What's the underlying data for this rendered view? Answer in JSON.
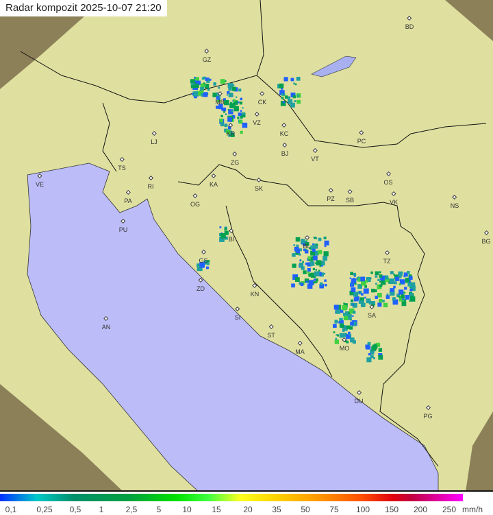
{
  "title": "Radar kompozit  2025-10-07   21:20",
  "legend": {
    "unit": "mm/h",
    "labels": [
      "0,1",
      "0,25",
      "0,5",
      "1",
      "2,5",
      "5",
      "10",
      "15",
      "20",
      "35",
      "50",
      "75",
      "100",
      "150",
      "200",
      "250"
    ]
  },
  "colors": {
    "land": "#e8e4a8",
    "sea": "#bcbcf8",
    "out_of_range": "#8a8060",
    "rain_light": "#2060ff",
    "rain_mod": "#00a050"
  },
  "cities": [
    "GZ",
    "MB",
    "CK",
    "VZ",
    "KC",
    "PC",
    "KR",
    "LJ",
    "BJ",
    "VT",
    "ZG",
    "TS",
    "VE",
    "KA",
    "SK",
    "OS",
    "RI",
    "PA",
    "OG",
    "PZ",
    "SB",
    "VK",
    "NS",
    "PU",
    "BI",
    "BL",
    "BG",
    "TZ",
    "GS",
    "ZD",
    "KN",
    "SA",
    "SI",
    "AN",
    "ST",
    "MO",
    "MA",
    "DU",
    "PG",
    "BD"
  ]
}
